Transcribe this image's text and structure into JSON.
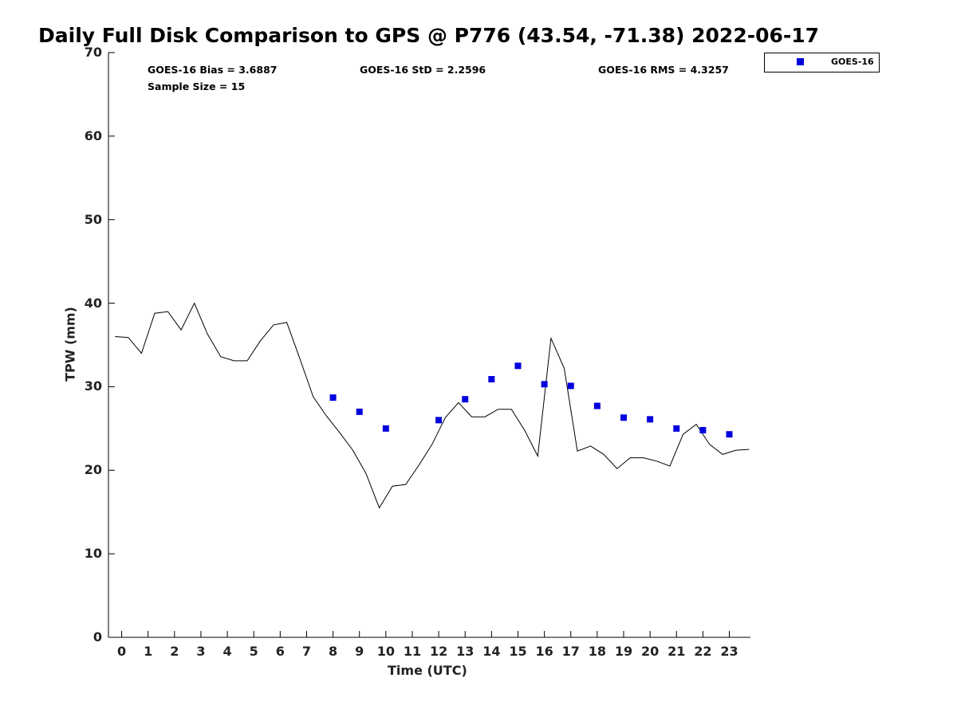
{
  "title": "Daily Full Disk Comparison to GPS @ P776 (43.54, -71.38) 2022-06-17",
  "stats": {
    "bias": "GOES-16 Bias = 3.6887",
    "std": "GOES-16 StD = 2.2596",
    "rms": "GOES-16 RMS = 4.3257",
    "sample": "Sample Size = 15"
  },
  "legend": {
    "label": "GOES-16"
  },
  "colors": {
    "goes16": "#0000dd",
    "gps": "#000000"
  },
  "chart_data": {
    "type": "scatter",
    "title": "Daily Full Disk Comparison to GPS @ P776 (43.54, -71.38) 2022-06-17",
    "xlabel": "Time (UTC)",
    "ylabel": "TPW (mm)",
    "xlim": [
      -0.5,
      23.8
    ],
    "ylim": [
      0,
      70
    ],
    "xticks": [
      0,
      1,
      2,
      3,
      4,
      5,
      6,
      7,
      8,
      9,
      10,
      11,
      12,
      13,
      14,
      15,
      16,
      17,
      18,
      19,
      20,
      21,
      22,
      23
    ],
    "yticks": [
      0,
      10,
      20,
      30,
      40,
      50,
      60,
      70
    ],
    "legend_position": "top-right outside",
    "series": [
      {
        "name": "GPS",
        "style": "line",
        "x": [
          -0.25,
          0.25,
          0.75,
          1.25,
          1.75,
          2.25,
          2.75,
          3.25,
          3.75,
          4.25,
          4.75,
          5.25,
          5.75,
          6.25,
          6.75,
          7.25,
          7.75,
          8.25,
          8.75,
          9.25,
          9.75,
          10.25,
          10.75,
          11.25,
          11.75,
          12.25,
          12.75,
          13.25,
          13.75,
          14.25,
          14.75,
          15.25,
          15.75,
          16.25,
          16.75,
          17.25,
          17.75,
          18.25,
          18.75,
          19.25,
          19.75,
          20.25,
          20.75,
          21.25,
          21.75,
          22.25,
          22.75,
          23.25,
          23.75
        ],
        "y": [
          36.0,
          35.9,
          34.0,
          38.8,
          39.0,
          36.8,
          40.0,
          36.3,
          33.6,
          33.1,
          33.1,
          35.5,
          37.4,
          37.7,
          33.3,
          28.8,
          26.5,
          24.5,
          22.4,
          19.6,
          15.5,
          18.1,
          18.3,
          20.6,
          23.1,
          26.3,
          28.1,
          26.4,
          26.4,
          27.3,
          27.3,
          24.8,
          21.7,
          35.8,
          32.2,
          22.3,
          22.9,
          21.9,
          20.2,
          21.5,
          21.5,
          21.1,
          20.5,
          24.3,
          25.5,
          23.1,
          21.9,
          22.4,
          22.5
        ]
      },
      {
        "name": "GOES-16",
        "style": "marker",
        "x": [
          8,
          9,
          10,
          12,
          13,
          14,
          15,
          16,
          17,
          18,
          19,
          20,
          21,
          22,
          23
        ],
        "y": [
          28.7,
          27.0,
          25.0,
          26.0,
          28.5,
          30.9,
          32.5,
          30.3,
          30.1,
          27.7,
          26.3,
          26.1,
          25.0,
          24.8,
          24.3
        ]
      }
    ]
  }
}
